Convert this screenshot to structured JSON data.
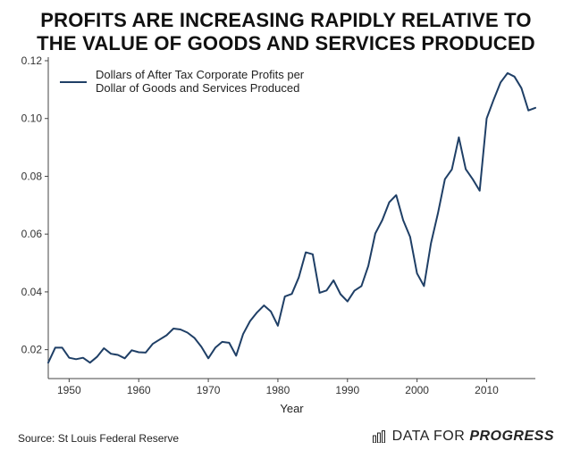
{
  "page": {
    "title_lines": [
      "PROFITS ARE INCREASING RAPIDLY RELATIVE TO",
      "THE VALUE OF GOODS AND SERVICES PRODUCED"
    ],
    "source": "Source: St Louis Federal Reserve",
    "brand_regular": "DATA FOR",
    "brand_bold": "PROGRESS",
    "brand_icon": "bar-chart-icon"
  },
  "chart_data": {
    "type": "line",
    "title": "PROFITS ARE INCREASING RAPIDLY RELATIVE TO THE VALUE OF GOODS AND SERVICES PRODUCED",
    "xlabel": "Year",
    "ylabel": "",
    "xlim": [
      1947,
      2017
    ],
    "ylim": [
      0.01,
      0.12
    ],
    "xticks": [
      1950,
      1960,
      1970,
      1980,
      1990,
      2000,
      2010
    ],
    "xtick_labels": [
      "1950",
      "1960",
      "1970",
      "1980",
      "1990",
      "2000",
      "2010"
    ],
    "yticks": [
      0.02,
      0.04,
      0.06,
      0.08,
      0.1,
      0.12
    ],
    "ytick_labels": [
      "0.02",
      "0.04",
      "0.06",
      "0.08",
      "0.10",
      "0.12"
    ],
    "grid": false,
    "legend_position": "top-left",
    "color": "#1f3f66",
    "series": [
      {
        "name": "Dollars of After Tax Corporate Profits per Dollar of Goods and Services Produced",
        "legend_lines": [
          "Dollars of After Tax Corporate Profits per",
          "Dollar of Goods and Services Produced"
        ],
        "x": [
          1947,
          1948,
          1949,
          1950,
          1951,
          1952,
          1953,
          1954,
          1955,
          1956,
          1957,
          1958,
          1959,
          1960,
          1961,
          1962,
          1963,
          1964,
          1965,
          1966,
          1967,
          1968,
          1969,
          1970,
          1971,
          1972,
          1973,
          1974,
          1975,
          1976,
          1977,
          1978,
          1979,
          1980,
          1981,
          1982,
          1983,
          1984,
          1985,
          1986,
          1987,
          1988,
          1989,
          1990,
          1991,
          1992,
          1993,
          1994,
          1995,
          1996,
          1997,
          1998,
          1999,
          2000,
          2001,
          2002,
          2003,
          2004,
          2005,
          2006,
          2007,
          2008,
          2009,
          2010,
          2011,
          2012,
          2013,
          2014,
          2015,
          2016,
          2017
        ],
        "values": [
          0.0155,
          0.0207,
          0.0207,
          0.0172,
          0.0167,
          0.0172,
          0.0155,
          0.0175,
          0.0205,
          0.0186,
          0.0182,
          0.017,
          0.0198,
          0.0191,
          0.019,
          0.022,
          0.0235,
          0.025,
          0.0273,
          0.027,
          0.0259,
          0.0241,
          0.021,
          0.017,
          0.0207,
          0.0227,
          0.0224,
          0.0179,
          0.0254,
          0.0299,
          0.0329,
          0.0353,
          0.0332,
          0.0283,
          0.0384,
          0.0393,
          0.045,
          0.0537,
          0.053,
          0.0397,
          0.0405,
          0.044,
          0.0392,
          0.0367,
          0.0404,
          0.042,
          0.049,
          0.0602,
          0.0648,
          0.071,
          0.0735,
          0.0648,
          0.059,
          0.0464,
          0.042,
          0.0568,
          0.0672,
          0.079,
          0.0824,
          0.0935,
          0.0825,
          0.079,
          0.075,
          0.1,
          0.1065,
          0.1125,
          0.1157,
          0.1145,
          0.1105,
          0.1028,
          0.1037
        ]
      }
    ]
  }
}
